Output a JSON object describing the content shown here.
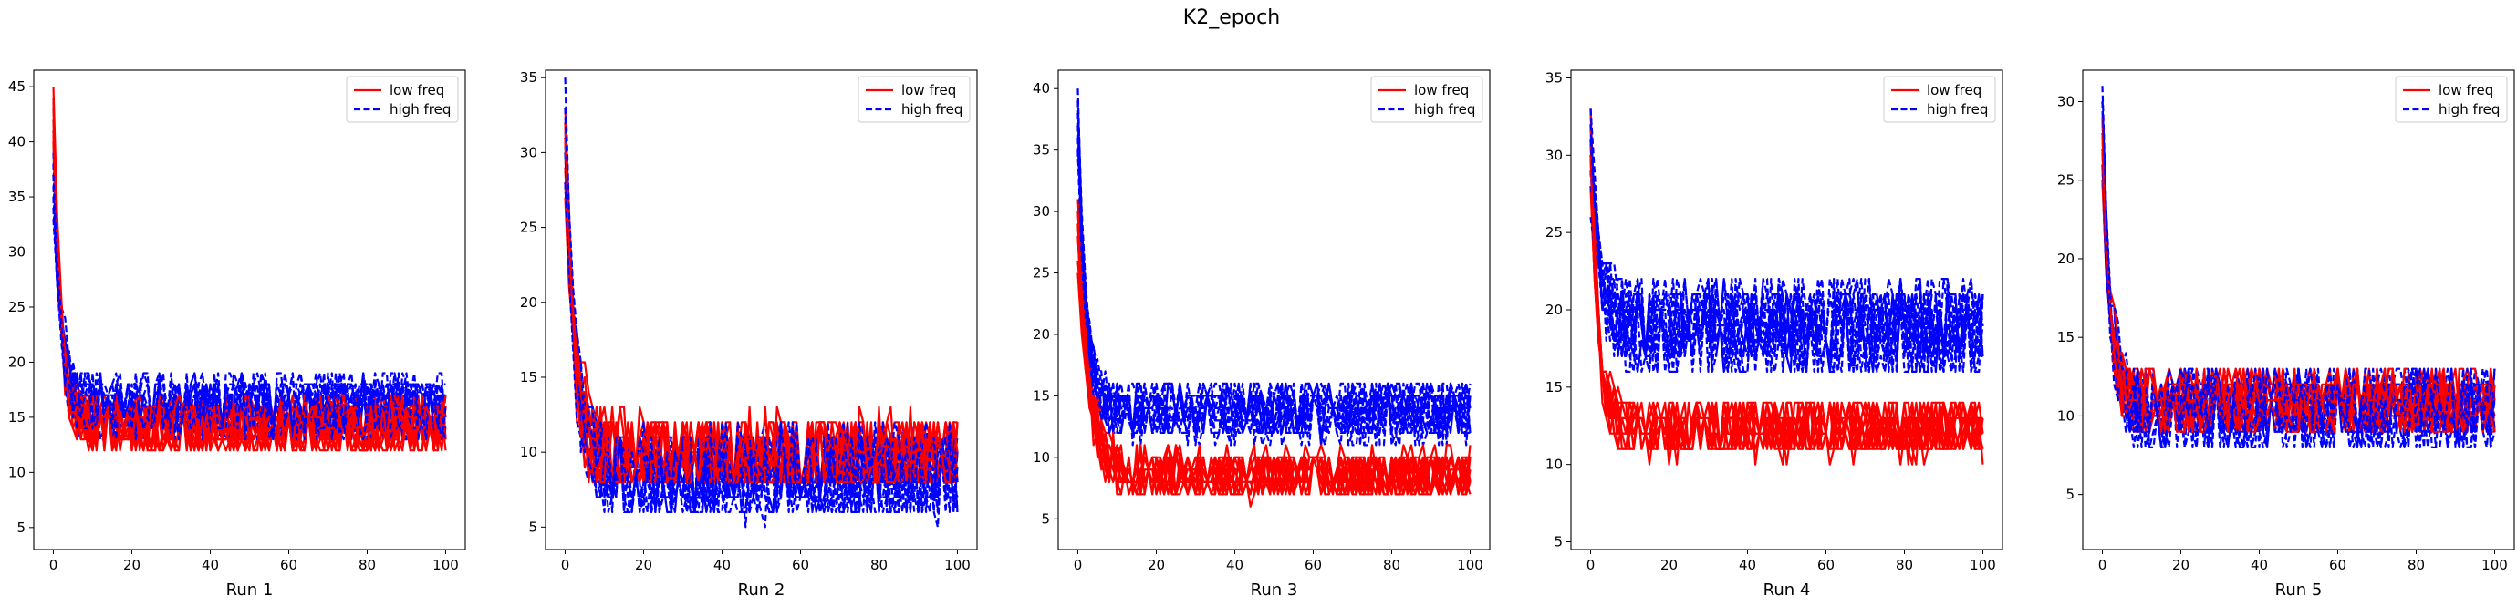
{
  "figure": {
    "suptitle": "K2_epoch"
  },
  "colors": {
    "low": "#ff0000",
    "high": "#0000ff"
  },
  "legend": {
    "low": "low freq",
    "high": "high freq",
    "placement": "upper right"
  },
  "chart_data": [
    {
      "type": "line",
      "xlabel": "Run 1",
      "xlim": [
        -5,
        105
      ],
      "ylim": [
        3,
        46.5
      ],
      "xticks": [
        0,
        20,
        40,
        60,
        80,
        100
      ],
      "yticks": [
        5,
        10,
        15,
        20,
        25,
        30,
        35,
        40,
        45
      ],
      "x_range": [
        0,
        100
      ],
      "n_series_per_group": 12,
      "series": [
        {
          "group": "low",
          "style": "solid",
          "start": 45,
          "plateau": 13,
          "spread": 4,
          "decay": 2.0,
          "noise": 2.5,
          "min": 5,
          "max": 21
        },
        {
          "group": "high",
          "style": "dashed",
          "start": 39,
          "plateau": 14,
          "spread": 5,
          "decay": 2.0,
          "noise": 3.0,
          "min": 5,
          "max": 24
        }
      ]
    },
    {
      "type": "line",
      "xlabel": "Run 2",
      "xlim": [
        -5,
        105
      ],
      "ylim": [
        3.5,
        35.5
      ],
      "xticks": [
        0,
        20,
        40,
        60,
        80,
        100
      ],
      "yticks": [
        5,
        10,
        15,
        20,
        25,
        30,
        35
      ],
      "x_range": [
        0,
        100
      ],
      "n_series_per_group": 12,
      "series": [
        {
          "group": "low",
          "style": "solid",
          "start": 33,
          "plateau": 14,
          "spread": 5,
          "decay": 2.5,
          "noise": 3.0,
          "min": 8,
          "max": 22
        },
        {
          "group": "high",
          "style": "dashed",
          "start": 34,
          "plateau": 12,
          "spread": 4,
          "decay": 2.5,
          "noise": 3.0,
          "min": 5,
          "max": 21
        }
      ]
    },
    {
      "type": "line",
      "xlabel": "Run 3",
      "xlim": [
        -5,
        105
      ],
      "ylim": [
        2.5,
        41.5
      ],
      "xticks": [
        0,
        20,
        40,
        60,
        80,
        100
      ],
      "yticks": [
        5,
        10,
        15,
        20,
        25,
        30,
        35,
        40
      ],
      "x_range": [
        0,
        100
      ],
      "n_series_per_group": 12,
      "series": [
        {
          "group": "low",
          "style": "solid",
          "start": 31,
          "plateau": 9,
          "spread": 3,
          "decay": 3.0,
          "noise": 2.0,
          "min": 4,
          "max": 18
        },
        {
          "group": "high",
          "style": "dashed",
          "start": 40,
          "plateau": 14,
          "spread": 3,
          "decay": 2.0,
          "noise": 2.5,
          "min": 8,
          "max": 21
        }
      ]
    },
    {
      "type": "line",
      "xlabel": "Run 4",
      "xlim": [
        -5,
        105
      ],
      "ylim": [
        4.5,
        35.5
      ],
      "xticks": [
        0,
        20,
        40,
        60,
        80,
        100
      ],
      "yticks": [
        5,
        10,
        15,
        20,
        25,
        30,
        35
      ],
      "x_range": [
        0,
        100
      ],
      "n_series_per_group": 12,
      "series": [
        {
          "group": "low",
          "style": "solid",
          "start": 34,
          "plateau": 11,
          "spread": 2,
          "decay": 2.0,
          "noise": 1.8,
          "min": 6,
          "max": 16
        },
        {
          "group": "high",
          "style": "dashed",
          "start": 33,
          "plateau": 16,
          "spread": 4,
          "decay": 2.5,
          "noise": 3.0,
          "min": 9,
          "max": 23
        }
      ]
    },
    {
      "type": "line",
      "xlabel": "Run 5",
      "xlim": [
        -5,
        105
      ],
      "ylim": [
        1.5,
        32
      ],
      "xticks": [
        0,
        20,
        40,
        60,
        80,
        100
      ],
      "yticks": [
        5,
        10,
        15,
        20,
        25,
        30
      ],
      "x_range": [
        0,
        100
      ],
      "n_series_per_group": 12,
      "series": [
        {
          "group": "low",
          "style": "solid",
          "start": 30,
          "plateau": 12,
          "spread": 2,
          "decay": 2.0,
          "noise": 2.0,
          "min": 8,
          "max": 19
        },
        {
          "group": "high",
          "style": "dashed",
          "start": 31,
          "plateau": 12,
          "spread": 3,
          "decay": 2.0,
          "noise": 2.5,
          "min": 3,
          "max": 19
        }
      ]
    }
  ]
}
